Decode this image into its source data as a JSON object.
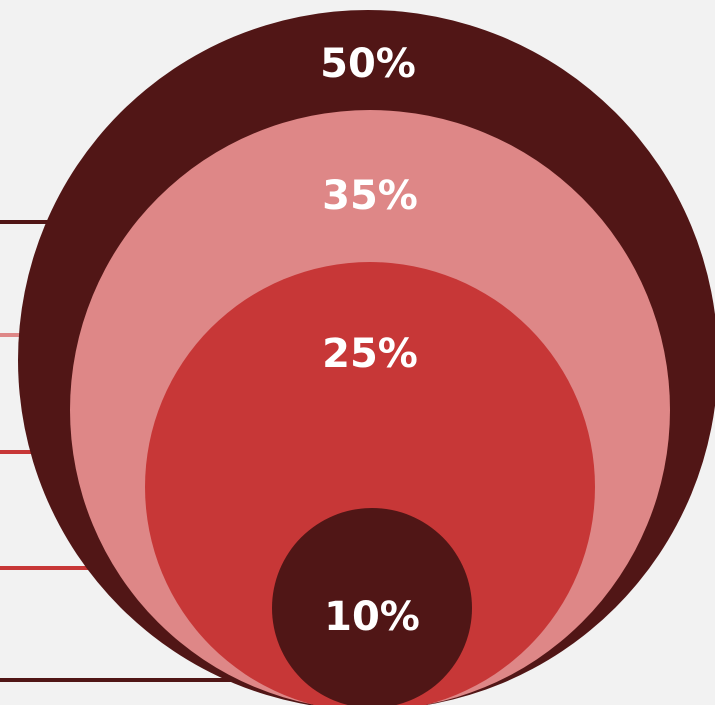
{
  "chart_data": {
    "type": "nested-circles",
    "title": "",
    "series": [
      {
        "label": "50%",
        "value": 50,
        "color": "#511616"
      },
      {
        "label": "35%",
        "value": 35,
        "color": "#de8787"
      },
      {
        "label": "25%",
        "value": 25,
        "color": "#c73737"
      },
      {
        "label": "10%",
        "value": 10,
        "color": "#501616"
      }
    ],
    "background": "#f2f2f2"
  }
}
